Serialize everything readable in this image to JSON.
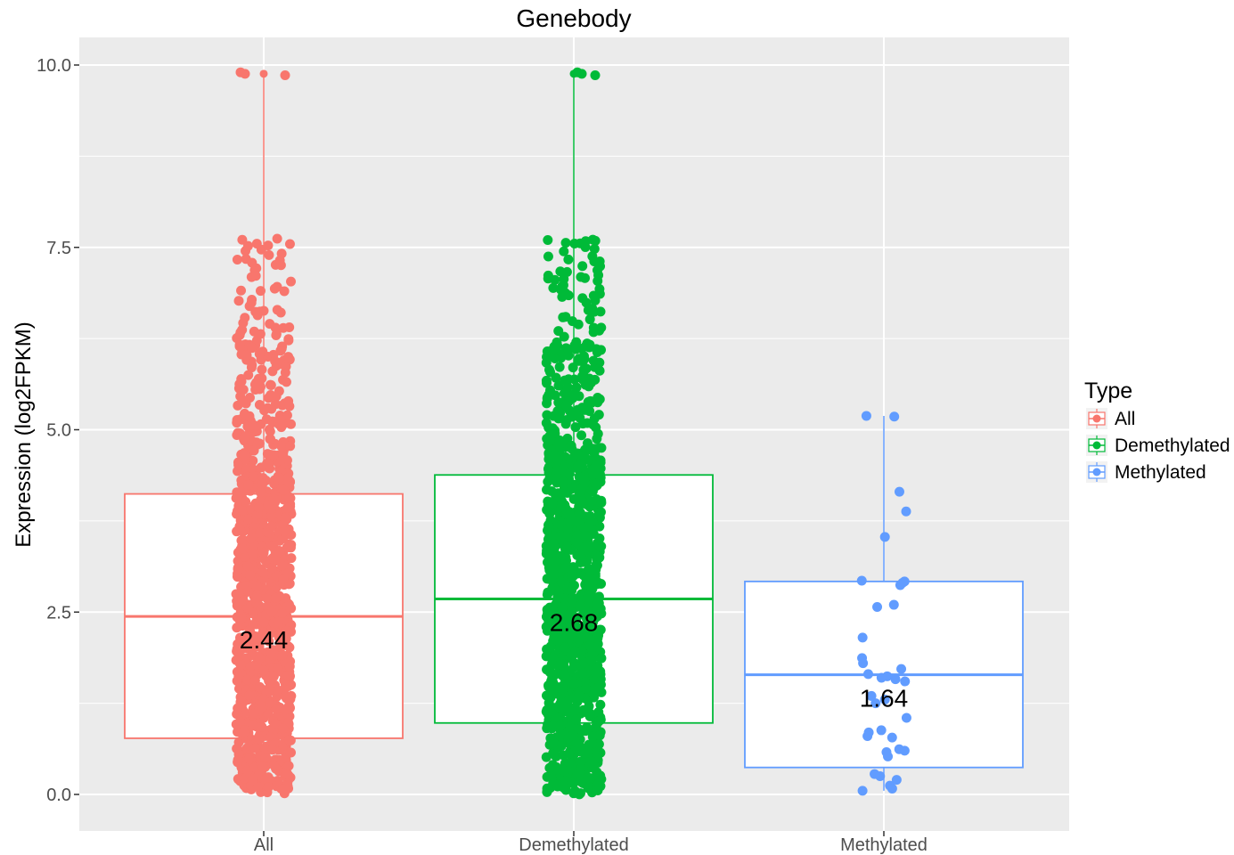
{
  "chart_data": {
    "type": "boxplot",
    "title": "Genebody",
    "xlabel": "",
    "ylabel": "Expression (log2FPKM)",
    "ylim": [
      -0.5,
      10.4
    ],
    "yticks": [
      "0.0",
      "2.5",
      "5.0",
      "7.5",
      "10.0"
    ],
    "ytick_values": [
      0,
      2.5,
      5,
      7.5,
      10
    ],
    "grid": true,
    "legend": {
      "title": "Type",
      "position": "right",
      "entries": [
        "All",
        "Demethylated",
        "Methylated"
      ]
    },
    "categories": [
      "All",
      "Demethylated",
      "Methylated"
    ],
    "series": [
      {
        "name": "All",
        "color": "#F8766D",
        "q1": 0.77,
        "median": 2.44,
        "q3": 4.12,
        "whisker_low": 0.0,
        "whisker_high": 9.88,
        "median_label": "2.44",
        "outliers": [
          9.9,
          9.88
        ]
      },
      {
        "name": "Demethylated",
        "color": "#00BA38",
        "q1": 0.98,
        "median": 2.68,
        "q3": 4.38,
        "whisker_low": 0.0,
        "whisker_high": 9.9,
        "median_label": "2.68",
        "outliers": [
          9.9,
          9.88
        ]
      },
      {
        "name": "Methylated",
        "color": "#619CFF",
        "q1": 0.37,
        "median": 1.64,
        "q3": 2.92,
        "whisker_low": 0.05,
        "whisker_high": 5.19,
        "median_label": "1.64",
        "points": [
          5.19,
          5.18,
          4.15,
          3.88,
          3.53,
          2.93,
          2.9,
          2.92,
          2.87,
          2.6,
          2.57,
          2.15,
          1.87,
          1.8,
          1.72,
          1.65,
          1.62,
          1.6,
          1.58,
          1.55,
          1.35,
          1.3,
          1.25,
          1.05,
          0.88,
          0.85,
          0.8,
          0.78,
          0.62,
          0.6,
          0.58,
          0.52,
          0.28,
          0.25,
          0.2,
          0.12,
          0.08,
          0.05
        ]
      }
    ]
  }
}
